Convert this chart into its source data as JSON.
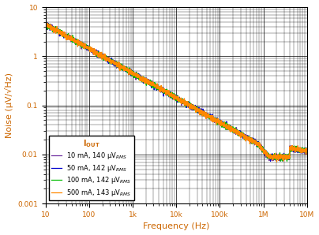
{
  "title": "",
  "xlabel": "Frequency (Hz)",
  "ylabel": "Noise (μV/√Hz)",
  "xlim": [
    10,
    10000000.0
  ],
  "ylim": [
    0.001,
    10
  ],
  "axis_label_color": "#cc6600",
  "tick_label_color": "#cc6600",
  "curves": {
    "10mA": {
      "label": "10 mA, 140 μV$_{RMS}$",
      "color": "#7030a0",
      "seed": 10
    },
    "50mA": {
      "label": "50 mA, 142 μV$_{RMS}$",
      "color": "#0000cd",
      "seed": 20
    },
    "100mA": {
      "label": "100 mA, 142 μV$_{RMS}$",
      "color": "#00bb00",
      "seed": 30
    },
    "500mA": {
      "label": "500 mA, 143 μV$_{RMS}$",
      "color": "#ff8800",
      "seed": 40
    }
  },
  "bg_color": "#ffffff",
  "linewidth": 0.9,
  "noise_amplitude": 0.06,
  "f_start": 10,
  "f_end": 10000000.0,
  "n_points": 3000,
  "v_at_10hz": 4.5,
  "slope_exponent": 0.5,
  "f_rolloff_start": 800000.0,
  "f_rolloff_end": 4000000.0,
  "v_floor": 0.009
}
